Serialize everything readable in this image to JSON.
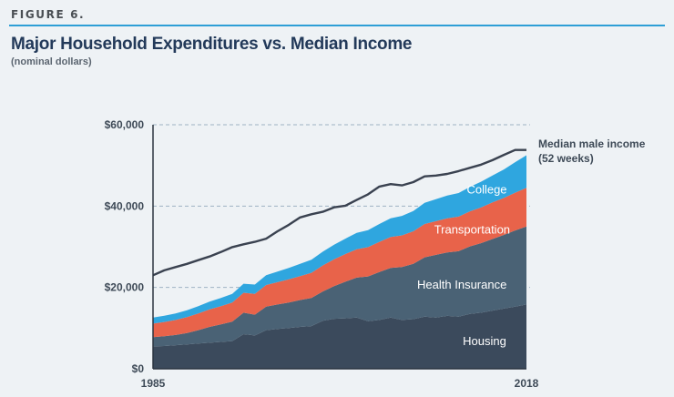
{
  "figure_label": "FIGURE 6.",
  "title": "Major Household Expenditures vs. Median Income",
  "subtitle": "(nominal dollars)",
  "colors": {
    "housing": "#3b4a5c",
    "health_insurance": "#4a6275",
    "transportation": "#e8634a",
    "college": "#2fa6df",
    "income_line": "#3a4250",
    "gridline": "#9fb3c3",
    "accent_rule": "#2e9fd6"
  },
  "chart_data": {
    "type": "area",
    "x": [
      1985,
      1986,
      1987,
      1988,
      1989,
      1990,
      1991,
      1992,
      1993,
      1994,
      1995,
      1996,
      1997,
      1998,
      1999,
      2000,
      2001,
      2002,
      2003,
      2004,
      2005,
      2006,
      2007,
      2008,
      2009,
      2010,
      2011,
      2012,
      2013,
      2014,
      2015,
      2016,
      2017,
      2018
    ],
    "xtick_labels": [
      "1985",
      "2018"
    ],
    "ytick_labels": [
      "$0",
      "$20,000",
      "$40,000",
      "$60,000"
    ],
    "yticks": [
      0,
      20000,
      40000,
      60000
    ],
    "ylim": [
      0,
      60000
    ],
    "xlim": [
      1985,
      2018
    ],
    "grid": true,
    "stacked": true,
    "series": [
      {
        "name": "Housing",
        "color_key": "housing",
        "values": [
          5500,
          5600,
          5800,
          6000,
          6200,
          6400,
          6600,
          6800,
          8500,
          8200,
          9500,
          9800,
          10000,
          10300,
          10500,
          11800,
          12300,
          12400,
          12600,
          11700,
          12000,
          12600,
          12000,
          12200,
          12800,
          12600,
          13000,
          12800,
          13500,
          13800,
          14300,
          14800,
          15300,
          15800
        ]
      },
      {
        "name": "Health Insurance",
        "values": [
          2300,
          2400,
          2500,
          2800,
          3300,
          3900,
          4300,
          4800,
          5300,
          5100,
          5800,
          6000,
          6300,
          6600,
          6900,
          7200,
          8000,
          9000,
          9800,
          11000,
          11800,
          12200,
          13000,
          13600,
          14600,
          15400,
          15600,
          16100,
          16600,
          17100,
          17600,
          18100,
          18700,
          19200
        ]
      },
      {
        "name": "Transportation",
        "values": [
          3300,
          3500,
          3700,
          3900,
          4100,
          4300,
          4500,
          4700,
          4900,
          5100,
          5300,
          5500,
          5700,
          5900,
          6200,
          6400,
          6600,
          6800,
          7000,
          7200,
          7400,
          7600,
          7800,
          8000,
          8200,
          8300,
          8400,
          8500,
          8600,
          8800,
          9000,
          9100,
          9300,
          9500
        ]
      },
      {
        "name": "College",
        "values": [
          1500,
          1550,
          1600,
          1700,
          1800,
          1900,
          2000,
          2100,
          2200,
          2300,
          2400,
          2600,
          2800,
          3000,
          3200,
          3400,
          3600,
          3800,
          4000,
          4200,
          4400,
          4600,
          4800,
          5000,
          5200,
          5400,
          5600,
          5800,
          6000,
          6300,
          6600,
          7000,
          7500,
          8000
        ]
      }
    ],
    "line": {
      "name": "Median male income\n(52 weeks)",
      "label_lines": [
        "Median male income",
        "(52 weeks)"
      ],
      "values": [
        23000,
        24200,
        25000,
        25800,
        26700,
        27600,
        28700,
        29900,
        30600,
        31200,
        32000,
        33800,
        35400,
        37200,
        38000,
        38600,
        39700,
        40100,
        41500,
        42900,
        44800,
        45400,
        45100,
        45900,
        47300,
        47500,
        47900,
        48600,
        49400,
        50200,
        51300,
        52600,
        53800,
        53800
      ]
    },
    "area_labels": [
      {
        "series": "College",
        "text": "College"
      },
      {
        "series": "Transportation",
        "text": "Transportation"
      },
      {
        "series": "Health Insurance",
        "text": "Health Insurance"
      },
      {
        "series": "Housing",
        "text": "Housing"
      }
    ]
  }
}
